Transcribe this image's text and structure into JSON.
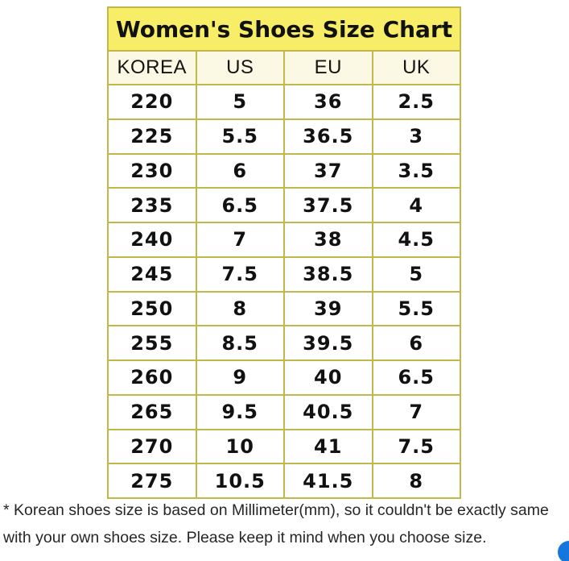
{
  "table": {
    "title": "Women's Shoes Size Chart",
    "title_bg": "#f8ed66",
    "header_bg": "#fbf8e3",
    "border_color": "#c2b74b",
    "columns": [
      "KOREA",
      "US",
      "EU",
      "UK"
    ],
    "rows": [
      [
        "220",
        "5",
        "36",
        "2.5"
      ],
      [
        "225",
        "5.5",
        "36.5",
        "3"
      ],
      [
        "230",
        "6",
        "37",
        "3.5"
      ],
      [
        "235",
        "6.5",
        "37.5",
        "4"
      ],
      [
        "240",
        "7",
        "38",
        "4.5"
      ],
      [
        "245",
        "7.5",
        "38.5",
        "5"
      ],
      [
        "250",
        "8",
        "39",
        "5.5"
      ],
      [
        "255",
        "8.5",
        "39.5",
        "6"
      ],
      [
        "260",
        "9",
        "40",
        "6.5"
      ],
      [
        "265",
        "9.5",
        "40.5",
        "7"
      ],
      [
        "270",
        "10",
        "41",
        "7.5"
      ],
      [
        "275",
        "10.5",
        "41.5",
        "8"
      ]
    ]
  },
  "footnote": {
    "lines": [
      "* Korean shoes size is based on Millimeter(mm), so it couldn't be exactly same",
      "with your own shoes size. Please keep it mind when you choose size."
    ]
  },
  "chat_button": {
    "color": "#1577dd"
  }
}
